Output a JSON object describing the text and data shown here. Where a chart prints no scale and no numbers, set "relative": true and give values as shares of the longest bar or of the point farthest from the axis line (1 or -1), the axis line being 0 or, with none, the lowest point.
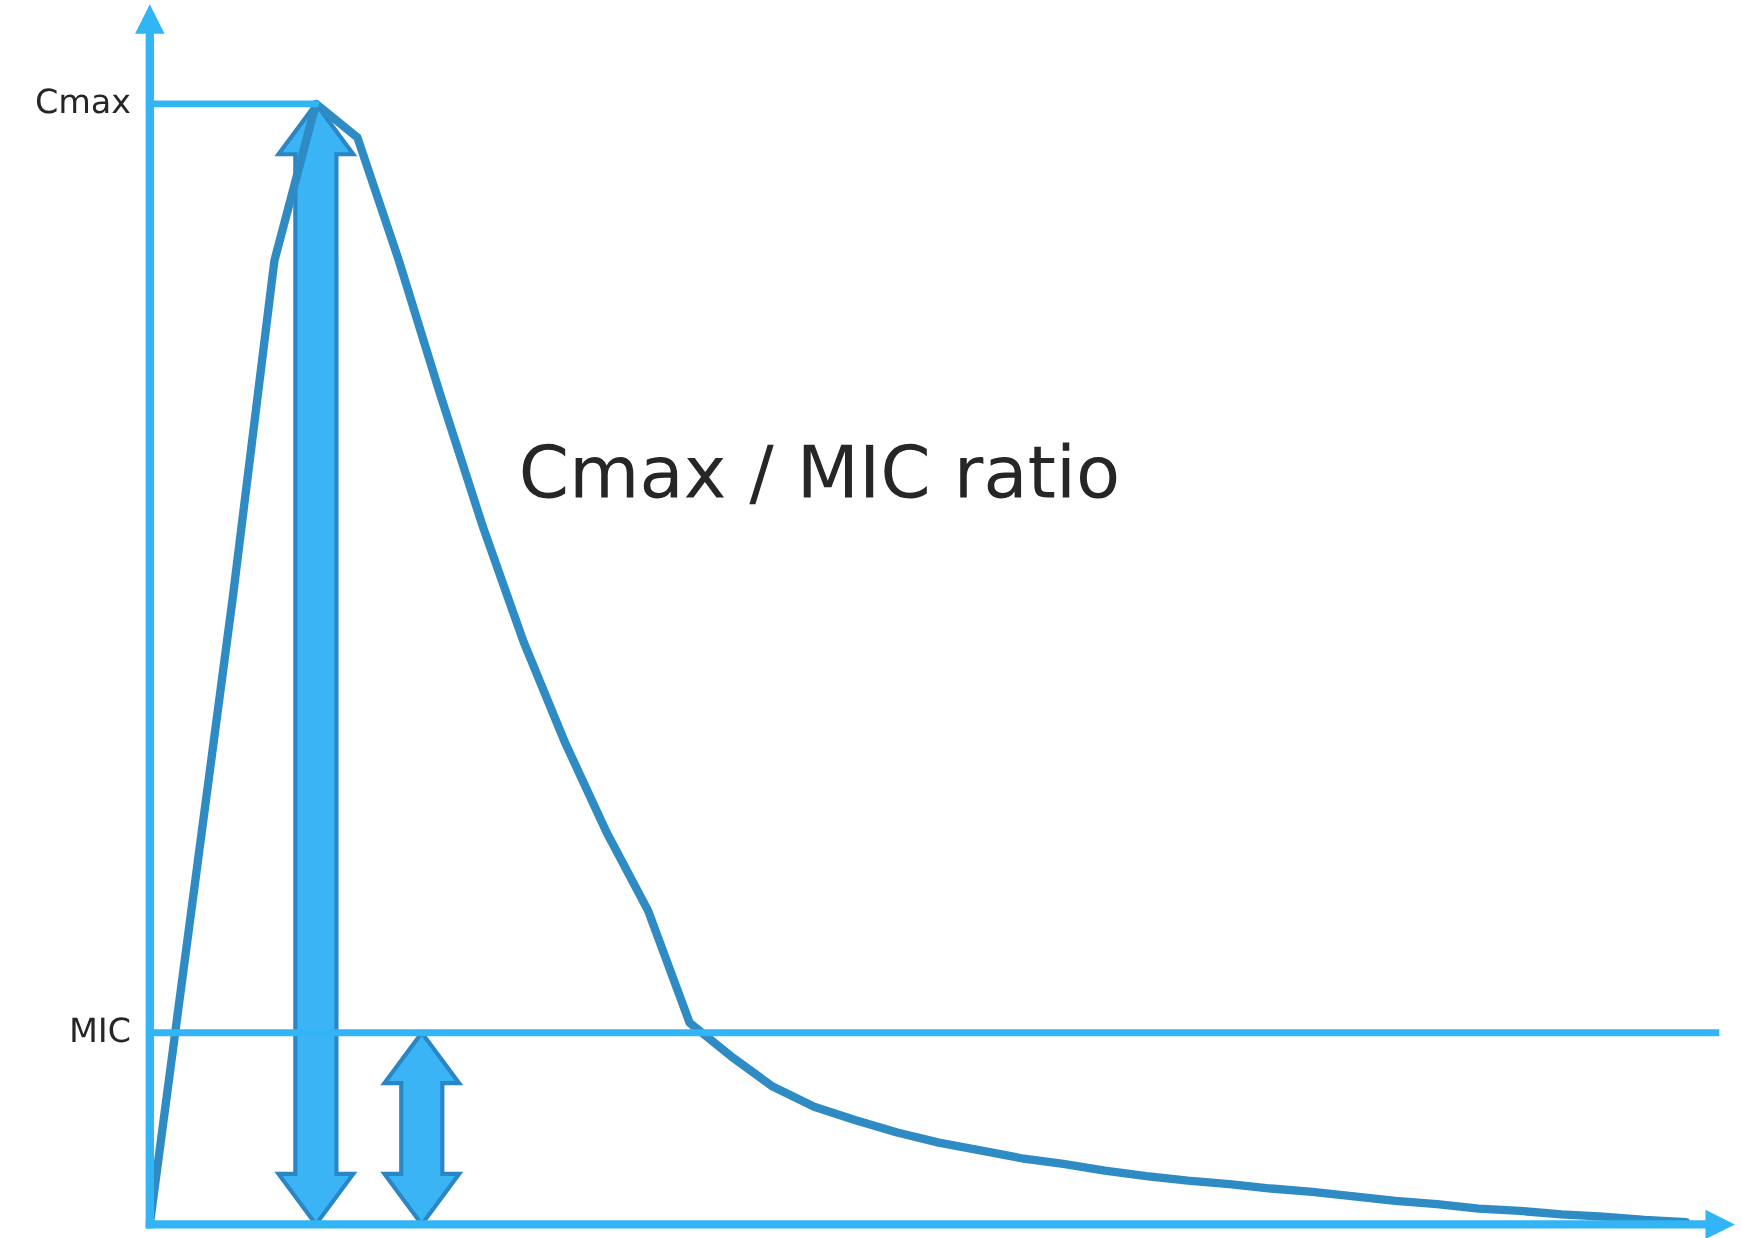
{
  "chart_data": {
    "type": "line",
    "relative": true,
    "marker": "none",
    "line_style": "solid",
    "categories": [
      null,
      null,
      null,
      null,
      null,
      null,
      null,
      null,
      null,
      null,
      null,
      null,
      null,
      null,
      null,
      null,
      null,
      null,
      null,
      null,
      null,
      null,
      null,
      null,
      null,
      null,
      null,
      null,
      null,
      null,
      null,
      null,
      null,
      null,
      null,
      null,
      null,
      null
    ],
    "series": [
      {
        "color": "#2e8bc4",
        "values": [
          0,
          0.28,
          0.56,
          0.86,
          1.0,
          0.97,
          0.86,
          0.74,
          0.625,
          0.52,
          0.43,
          0.35,
          0.28,
          0.18,
          0.15,
          0.123,
          0.105,
          0.093,
          0.082,
          0.073,
          0.066,
          0.059,
          0.054,
          0.048,
          0.043,
          0.039,
          0.036,
          0.032,
          0.029,
          0.025,
          0.021,
          0.018,
          0.014,
          0.012,
          0.009,
          0.007,
          0.004,
          0.002
        ]
      }
    ],
    "ref_lines": [
      {
        "axis": "y",
        "value": 1,
        "label": "Cmax",
        "color": "#33b5f5"
      },
      {
        "axis": "y",
        "value": 0.171,
        "label": "MIC",
        "color": "#33b5f5"
      }
    ],
    "annotations": [
      "Cmax / MIC ratio"
    ]
  }
}
